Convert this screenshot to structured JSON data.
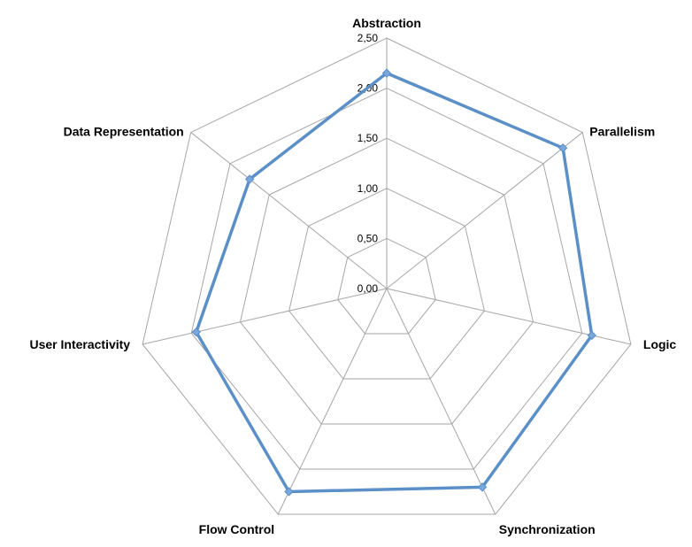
{
  "chart_data": {
    "type": "radar",
    "categories": [
      "Abstraction",
      "Parallelism",
      "Logic",
      "Synchronization",
      "Flow Control",
      "User Interactivity",
      "Data Representation"
    ],
    "series": [
      {
        "values": [
          2.15,
          2.25,
          2.1,
          2.2,
          2.25,
          1.95,
          1.75
        ]
      }
    ],
    "rlim": [
      0,
      2.5
    ],
    "ticks": [
      "0,00",
      "0,50",
      "1,00",
      "1,50",
      "2,00",
      "2,50"
    ],
    "tick_values": [
      0,
      0.5,
      1.0,
      1.5,
      2.0,
      2.5
    ],
    "grid": true,
    "legend": "none",
    "colors": {
      "series": "#5b8fc7",
      "marker": "#7aa8dc",
      "grid": "#a6a6a6"
    }
  }
}
